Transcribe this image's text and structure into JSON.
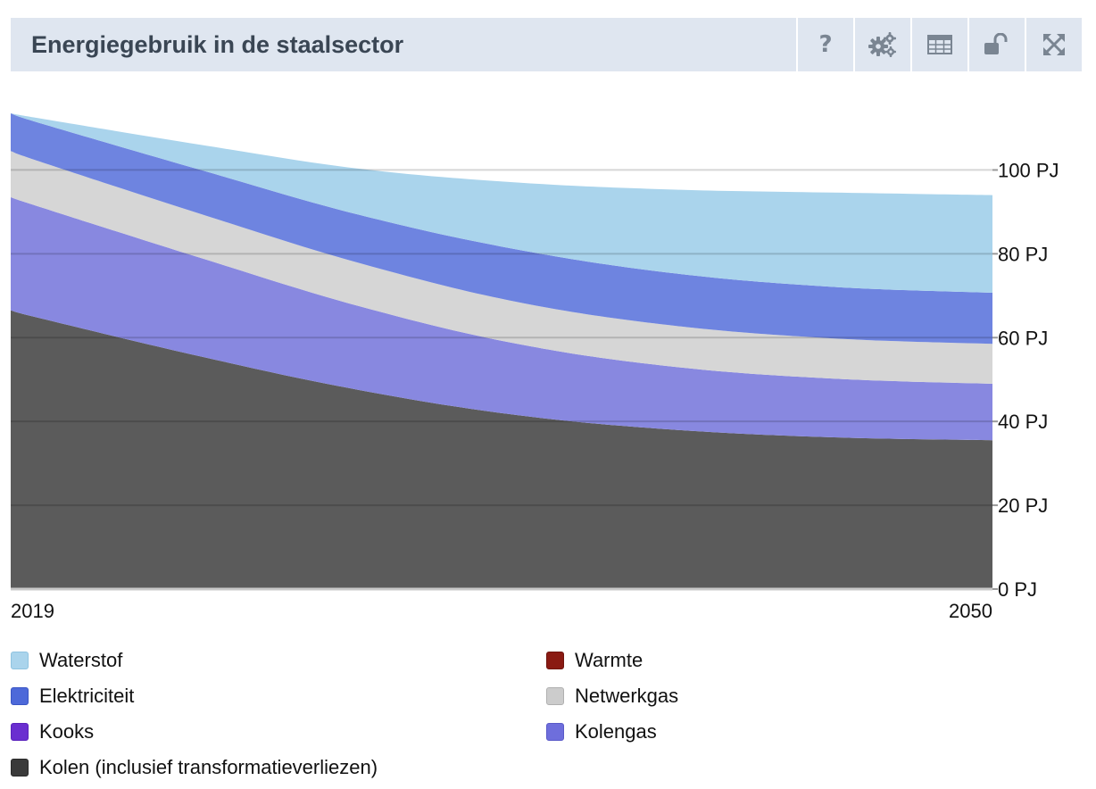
{
  "header": {
    "title": "Energiegebruik in de staalsector",
    "tools": [
      {
        "name": "help-button",
        "icon": "question-icon",
        "glyph": "?"
      },
      {
        "name": "settings-button",
        "icon": "gears-icon"
      },
      {
        "name": "table-button",
        "icon": "table-icon"
      },
      {
        "name": "lock-button",
        "icon": "unlock-icon"
      },
      {
        "name": "fullscreen-button",
        "icon": "expand-icon"
      }
    ]
  },
  "chart_data": {
    "type": "area",
    "stacked": true,
    "x": [
      2019,
      2020,
      2025,
      2030,
      2035,
      2040,
      2045,
      2050
    ],
    "x_tick_labels": [
      "2019",
      "2050"
    ],
    "y_unit": "PJ",
    "ylim": [
      0,
      115
    ],
    "y_ticks": [
      0,
      20,
      40,
      60,
      80,
      100
    ],
    "y_tick_labels": [
      "0 PJ",
      "20 PJ",
      "40 PJ",
      "60 PJ",
      "80 PJ",
      "100 PJ"
    ],
    "grid": true,
    "legend_position": "bottom",
    "series": [
      {
        "name": "Kolen (inclusief transformatieverliezen)",
        "color": "#5b5b5b",
        "values": [
          66.5,
          64.5,
          55.5,
          47.5,
          41.5,
          38,
          36.2,
          35.5
        ]
      },
      {
        "name": "Kolengas",
        "color": "#8888e0",
        "values": [
          27,
          26.5,
          23.5,
          20,
          17,
          15,
          14,
          13.5
        ]
      },
      {
        "name": "Netwerkgas",
        "color": "#d6d6d6",
        "values": [
          11,
          10.8,
          10.5,
          10.3,
          10,
          9.8,
          9.6,
          9.5
        ]
      },
      {
        "name": "Elektriciteit",
        "color": "#6e84e0",
        "values": [
          9,
          9.2,
          10.5,
          11.5,
          12.5,
          12.5,
          12.3,
          12.2
        ]
      },
      {
        "name": "Waterstof",
        "color": "#aad4ec",
        "values": [
          0,
          1.2,
          6,
          11,
          16,
          20,
          22.5,
          23.3
        ]
      },
      {
        "name": "Kooks",
        "color": "#6a2ed0",
        "values": [
          0,
          0,
          0,
          0,
          0,
          0,
          0,
          0
        ]
      },
      {
        "name": "Warmte",
        "color": "#8a1a12",
        "values": [
          0,
          0,
          0,
          0,
          0,
          0,
          0,
          0
        ]
      }
    ]
  },
  "legend": {
    "items": [
      {
        "label": "Waterstof",
        "color": "#aad4ec",
        "border": "#8fc3e0"
      },
      {
        "label": "Elektriciteit",
        "color": "#4d69d9",
        "border": "#3a56c4"
      },
      {
        "label": "Kooks",
        "color": "#6a2ed0",
        "border": "#5a22bc"
      },
      {
        "label": "Kolen (inclusief transformatieverliezen)",
        "color": "#3a3a3a",
        "border": "#2a2a2a"
      },
      {
        "label": "Warmte",
        "color": "#8a1a12",
        "border": "#6e140e"
      },
      {
        "label": "Netwerkgas",
        "color": "#cccccc",
        "border": "#b0b0b0"
      },
      {
        "label": "Kolengas",
        "color": "#6e6edc",
        "border": "#5a5ac8"
      }
    ]
  }
}
